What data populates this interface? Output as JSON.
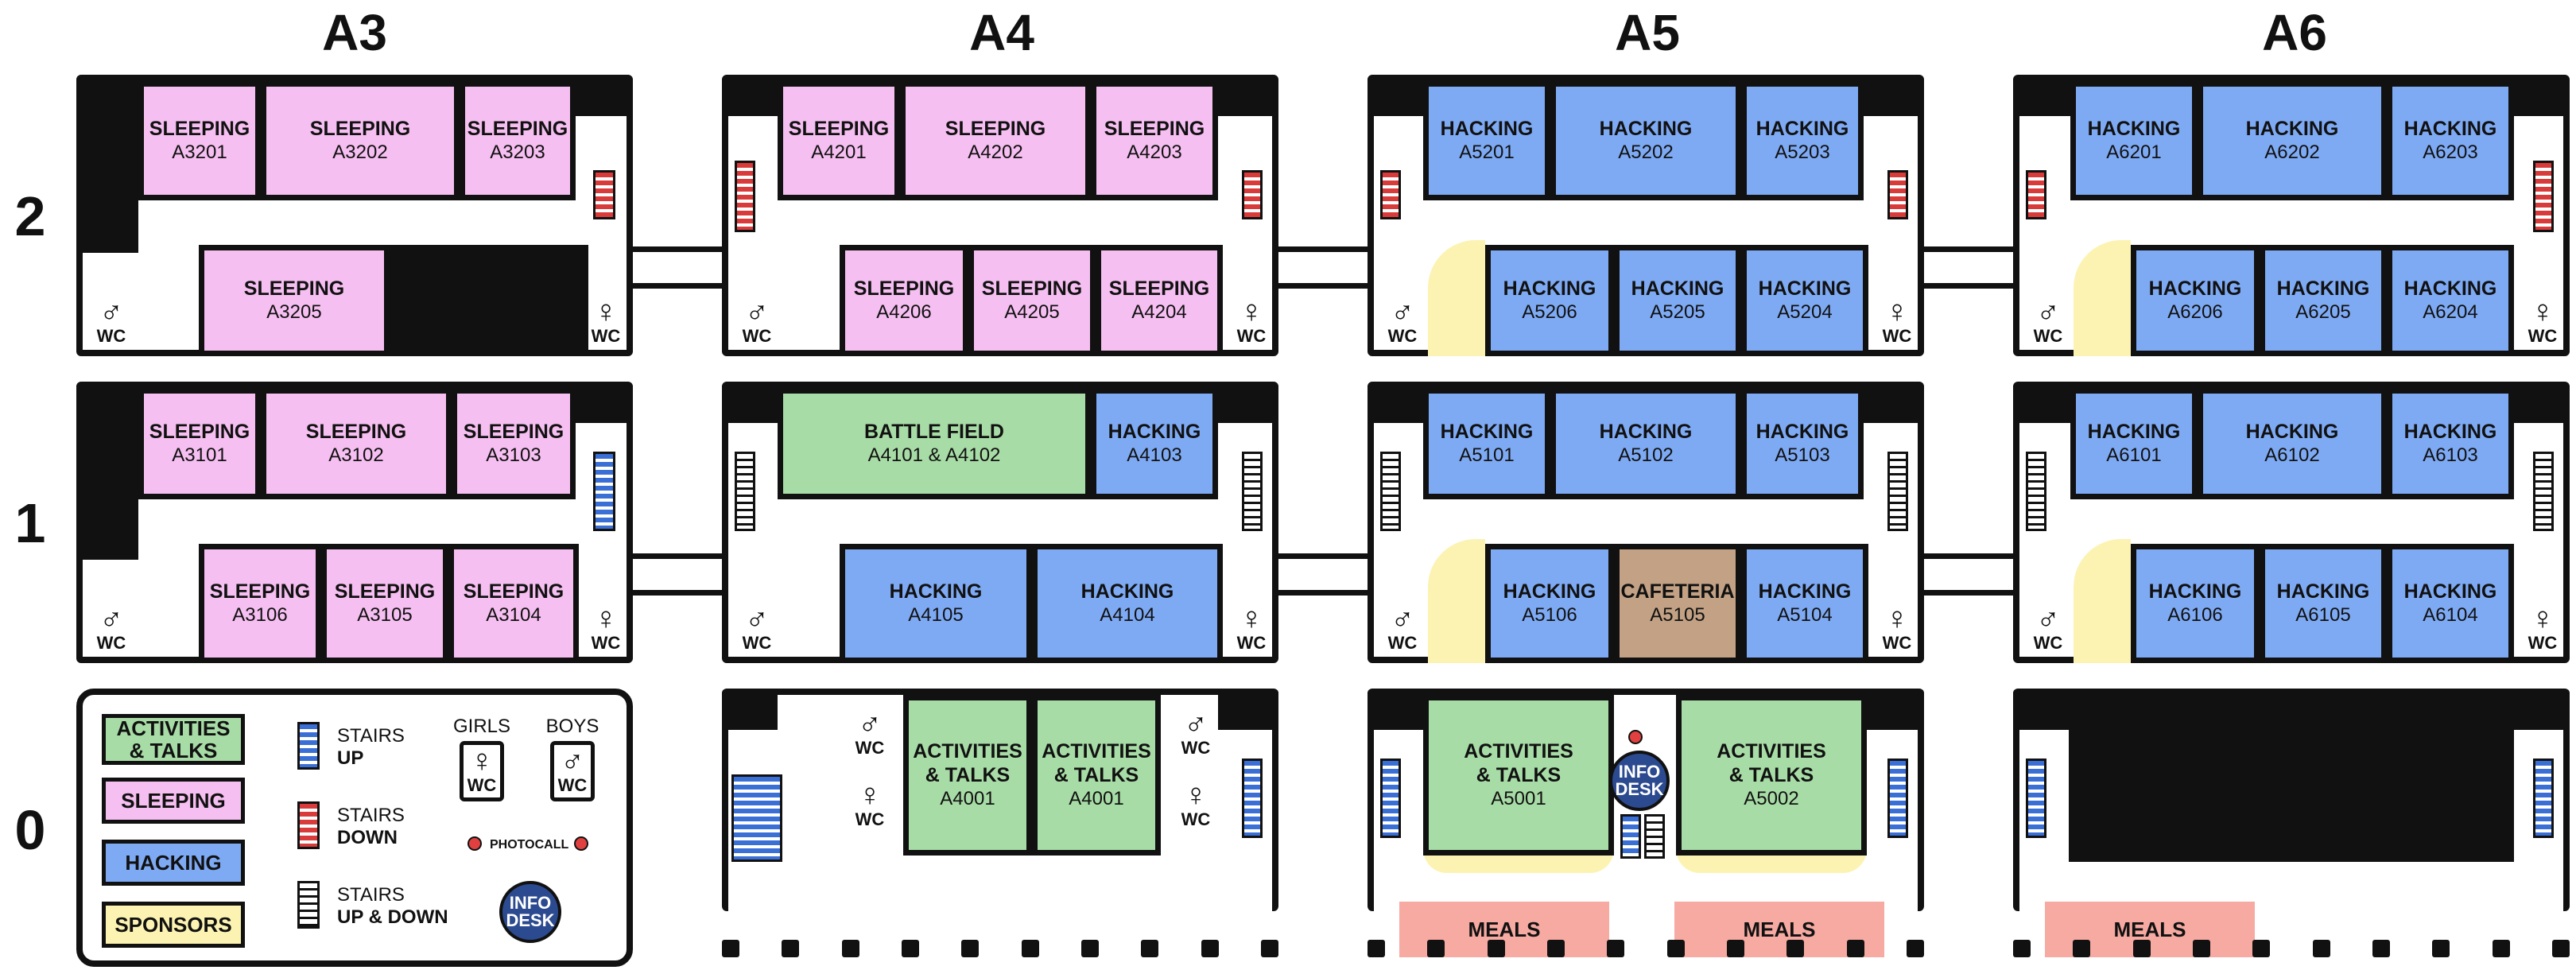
{
  "buildings": [
    "A3",
    "A4",
    "A5",
    "A6"
  ],
  "floors": [
    "2",
    "1",
    "0"
  ],
  "rooms": {
    "a3201": {
      "name": "SLEEPING",
      "id": "A3201"
    },
    "a3202": {
      "name": "SLEEPING",
      "id": "A3202"
    },
    "a3203": {
      "name": "SLEEPING",
      "id": "A3203"
    },
    "a3205": {
      "name": "SLEEPING",
      "id": "A3205"
    },
    "a4201": {
      "name": "SLEEPING",
      "id": "A4201"
    },
    "a4202": {
      "name": "SLEEPING",
      "id": "A4202"
    },
    "a4203": {
      "name": "SLEEPING",
      "id": "A4203"
    },
    "a4206": {
      "name": "SLEEPING",
      "id": "A4206"
    },
    "a4205": {
      "name": "SLEEPING",
      "id": "A4205"
    },
    "a4204": {
      "name": "SLEEPING",
      "id": "A4204"
    },
    "a5201": {
      "name": "HACKING",
      "id": "A5201"
    },
    "a5202": {
      "name": "HACKING",
      "id": "A5202"
    },
    "a5203": {
      "name": "HACKING",
      "id": "A5203"
    },
    "a5206": {
      "name": "HACKING",
      "id": "A5206"
    },
    "a5205": {
      "name": "HACKING",
      "id": "A5205"
    },
    "a5204": {
      "name": "HACKING",
      "id": "A5204"
    },
    "a6201": {
      "name": "HACKING",
      "id": "A6201"
    },
    "a6202": {
      "name": "HACKING",
      "id": "A6202"
    },
    "a6203": {
      "name": "HACKING",
      "id": "A6203"
    },
    "a6206": {
      "name": "HACKING",
      "id": "A6206"
    },
    "a6205": {
      "name": "HACKING",
      "id": "A6205"
    },
    "a6204": {
      "name": "HACKING",
      "id": "A6204"
    },
    "a3101": {
      "name": "SLEEPING",
      "id": "A3101"
    },
    "a3102": {
      "name": "SLEEPING",
      "id": "A3102"
    },
    "a3103": {
      "name": "SLEEPING",
      "id": "A3103"
    },
    "a3106": {
      "name": "SLEEPING",
      "id": "A3106"
    },
    "a3105": {
      "name": "SLEEPING",
      "id": "A3105"
    },
    "a3104": {
      "name": "SLEEPING",
      "id": "A3104"
    },
    "a4101": {
      "name": "BATTLE FIELD",
      "id": "A4101 & A4102"
    },
    "a4103": {
      "name": "HACKING",
      "id": "A4103"
    },
    "a4105": {
      "name": "HACKING",
      "id": "A4105"
    },
    "a4104": {
      "name": "HACKING",
      "id": "A4104"
    },
    "a5101": {
      "name": "HACKING",
      "id": "A5101"
    },
    "a5102": {
      "name": "HACKING",
      "id": "A5102"
    },
    "a5103": {
      "name": "HACKING",
      "id": "A5103"
    },
    "a5106": {
      "name": "HACKING",
      "id": "A5106"
    },
    "a5105": {
      "name": "CAFETERIA",
      "id": "A5105"
    },
    "a5104": {
      "name": "HACKING",
      "id": "A5104"
    },
    "a6101": {
      "name": "HACKING",
      "id": "A6101"
    },
    "a6102": {
      "name": "HACKING",
      "id": "A6102"
    },
    "a6103": {
      "name": "HACKING",
      "id": "A6103"
    },
    "a6106": {
      "name": "HACKING",
      "id": "A6106"
    },
    "a6105": {
      "name": "HACKING",
      "id": "A6105"
    },
    "a6104": {
      "name": "HACKING",
      "id": "A6104"
    },
    "a4001a": {
      "name": "ACTIVITIES\n& TALKS",
      "id": "A4001"
    },
    "a4001b": {
      "name": "ACTIVITIES\n& TALKS",
      "id": "A4001"
    },
    "a5001": {
      "name": "ACTIVITIES\n& TALKS",
      "id": "A5001"
    },
    "a5002": {
      "name": "ACTIVITIES\n& TALKS",
      "id": "A5002"
    }
  },
  "wc": {
    "label": "WC",
    "male": "♂",
    "female": "♀"
  },
  "meals": "MEALS",
  "info_desk": "INFO\nDESK",
  "legend": {
    "activities": "ACTIVITIES\n& TALKS",
    "sleeping": "SLEEPING",
    "hacking": "HACKING",
    "sponsors": "SPONSORS",
    "stairs": "STAIRS",
    "up": "UP",
    "down": "DOWN",
    "up_down": "UP & DOWN",
    "girls": "GIRLS",
    "boys": "BOYS",
    "photocall": "PHOTOCALL",
    "info": "INFO\nDESK"
  },
  "colors": {
    "sleeping": "#f6bff1",
    "hacking": "#7eaaf4",
    "activities": "#a8dca6",
    "sponsors": "#fcf3b2",
    "cafeteria": "#c2a184",
    "meals": "#f6aaa2",
    "stairs_up": "#3a6fd6",
    "stairs_down": "#d93a3a"
  },
  "icons": [
    "male-icon",
    "female-icon",
    "arrow-up-icon",
    "arrow-down-icon",
    "photocall-icon",
    "info-desk-icon"
  ]
}
